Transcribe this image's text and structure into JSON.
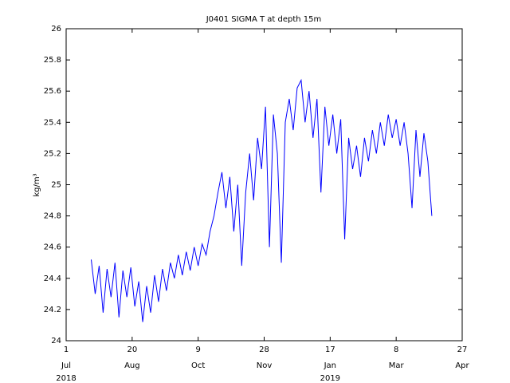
{
  "chart_data": {
    "type": "line",
    "title": "J0401 SIGMA T at depth 15m",
    "y_label": "kg/m³",
    "x": [
      "2018-07-20",
      "2018-07-23",
      "2018-07-26",
      "2018-07-29",
      "2018-08-01",
      "2018-08-04",
      "2018-08-07",
      "2018-08-10",
      "2018-08-13",
      "2018-08-16",
      "2018-08-19",
      "2018-08-22",
      "2018-08-25",
      "2018-08-28",
      "2018-08-31",
      "2018-09-03",
      "2018-09-06",
      "2018-09-09",
      "2018-09-12",
      "2018-09-15",
      "2018-09-18",
      "2018-09-21",
      "2018-09-24",
      "2018-09-27",
      "2018-09-30",
      "2018-10-03",
      "2018-10-06",
      "2018-10-09",
      "2018-10-12",
      "2018-10-15",
      "2018-10-18",
      "2018-10-21",
      "2018-10-24",
      "2018-10-27",
      "2018-10-30",
      "2018-11-02",
      "2018-11-05",
      "2018-11-08",
      "2018-11-11",
      "2018-11-14",
      "2018-11-17",
      "2018-11-20",
      "2018-11-23",
      "2018-11-26",
      "2018-11-29",
      "2018-12-02",
      "2018-12-05",
      "2018-12-08",
      "2018-12-11",
      "2018-12-14",
      "2018-12-17",
      "2018-12-20",
      "2018-12-23",
      "2018-12-26",
      "2018-12-29",
      "2019-01-01",
      "2019-01-04",
      "2019-01-07",
      "2019-01-10",
      "2019-01-13",
      "2019-01-16",
      "2019-01-19",
      "2019-01-22",
      "2019-01-25",
      "2019-01-28",
      "2019-01-31",
      "2019-02-03",
      "2019-02-06",
      "2019-02-09",
      "2019-02-12",
      "2019-02-15",
      "2019-02-18",
      "2019-02-21",
      "2019-02-24",
      "2019-02-27",
      "2019-03-02",
      "2019-03-05",
      "2019-03-08",
      "2019-03-11",
      "2019-03-14",
      "2019-03-17",
      "2019-03-20",
      "2019-03-23",
      "2019-03-26",
      "2019-03-29",
      "2019-04-01",
      "2019-04-04"
    ],
    "series": [
      {
        "color": "#0000ff",
        "values": [
          24.52,
          24.3,
          24.48,
          24.18,
          24.46,
          24.28,
          24.5,
          24.15,
          24.45,
          24.28,
          24.47,
          24.22,
          24.38,
          24.12,
          24.35,
          24.18,
          24.42,
          24.25,
          24.46,
          24.32,
          24.5,
          24.4,
          24.55,
          24.42,
          24.57,
          24.45,
          24.6,
          24.48,
          24.62,
          24.55,
          24.7,
          24.8,
          24.95,
          25.08,
          24.85,
          25.05,
          24.7,
          25.0,
          24.48,
          24.95,
          25.2,
          24.9,
          25.3,
          25.1,
          25.5,
          24.6,
          25.45,
          25.2,
          24.5,
          25.4,
          25.55,
          25.35,
          25.62,
          25.67,
          25.4,
          25.6,
          25.3,
          25.55,
          24.95,
          25.5,
          25.25,
          25.45,
          25.2,
          25.42,
          24.65,
          25.3,
          25.1,
          25.25,
          25.05,
          25.3,
          25.15,
          25.35,
          25.2,
          25.4,
          25.25,
          25.45,
          25.3,
          25.42,
          25.25,
          25.4,
          25.2,
          24.85,
          25.35,
          25.05,
          25.33,
          25.15,
          24.8
        ]
      }
    ],
    "xlim": [
      "2018-07-01",
      "2019-04-27"
    ],
    "xticks": [
      {
        "value": "2018-07-01",
        "label": "1"
      },
      {
        "value": "2018-08-20",
        "label": "20"
      },
      {
        "value": "2018-10-09",
        "label": "9"
      },
      {
        "value": "2018-11-28",
        "label": "28"
      },
      {
        "value": "2019-01-17",
        "label": "17"
      },
      {
        "value": "2019-03-08",
        "label": "8"
      },
      {
        "value": "2019-04-27",
        "label": "27"
      }
    ],
    "xtick_months": [
      "Jul",
      "Aug",
      "Oct",
      "Nov",
      "Jan",
      "Mar",
      "Apr"
    ],
    "xtick_years": [
      {
        "value": "2018-07-01",
        "label": "2018"
      },
      {
        "value": "2019-01-17",
        "label": "2019"
      }
    ],
    "ylim": [
      24,
      26
    ],
    "yticks": [
      24,
      24.2,
      24.4,
      24.6,
      24.8,
      25,
      25.2,
      25.4,
      25.6,
      25.8,
      26
    ],
    "grid": false
  }
}
